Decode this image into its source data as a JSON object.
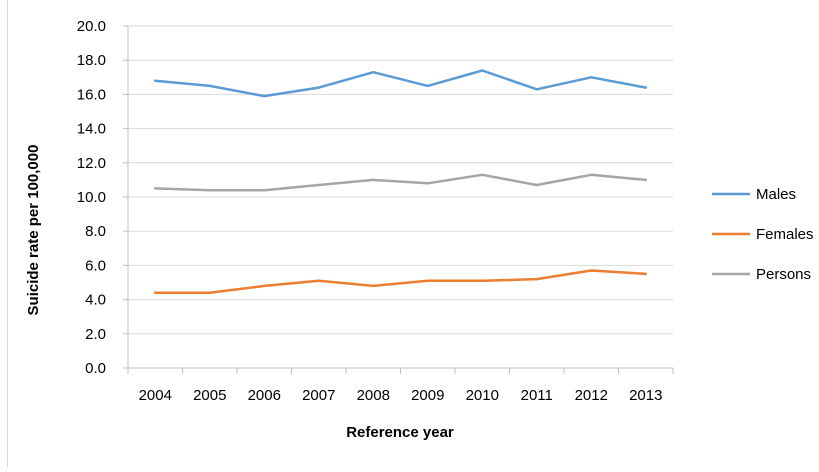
{
  "chart_data": {
    "type": "line",
    "title": "",
    "xlabel": "Reference year",
    "ylabel": "Suicide rate per 100,000",
    "categories": [
      "2004",
      "2005",
      "2006",
      "2007",
      "2008",
      "2009",
      "2010",
      "2011",
      "2012",
      "2013"
    ],
    "ylim": [
      0,
      20
    ],
    "yticks": [
      "0.0",
      "2.0",
      "4.0",
      "6.0",
      "8.0",
      "10.0",
      "12.0",
      "14.0",
      "16.0",
      "18.0",
      "20.0"
    ],
    "grid": true,
    "legend_position": "right",
    "series": [
      {
        "name": "Males",
        "color": "#5b9bd5",
        "values": [
          16.8,
          16.5,
          15.9,
          16.4,
          17.3,
          16.5,
          17.4,
          16.3,
          17.0,
          16.4
        ]
      },
      {
        "name": "Females",
        "color": "#ed7d31",
        "values": [
          4.4,
          4.4,
          4.8,
          5.1,
          4.8,
          5.1,
          5.1,
          5.2,
          5.7,
          5.5
        ]
      },
      {
        "name": "Persons",
        "color": "#a5a5a5",
        "values": [
          10.5,
          10.4,
          10.4,
          10.7,
          11.0,
          10.8,
          11.3,
          10.7,
          11.3,
          11.0
        ]
      }
    ]
  }
}
